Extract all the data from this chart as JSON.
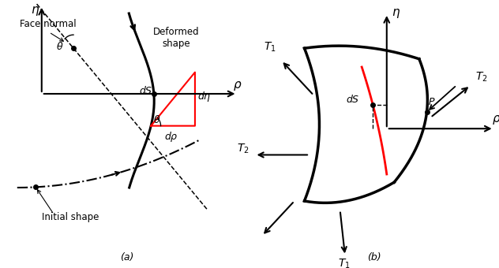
{
  "fig_width": 6.32,
  "fig_height": 3.4,
  "dpi": 100,
  "background": "#ffffff",
  "panel_a": {
    "label": "(a)",
    "eta_label": "η",
    "rho_label": "ρ",
    "face_normal_label": "Face normal",
    "deformed_label": "Deformed\nshape",
    "initial_label": "Initial shape",
    "theta_label": "θ",
    "dS_label": "dS",
    "deta_label": "dη",
    "drho_label": "dρ"
  },
  "panel_b": {
    "label": "(b)",
    "eta_label": "η",
    "rho_label": "ρ",
    "T1_label": "T_1",
    "T2_label": "T_2",
    "P_label": "P",
    "dS_label": "dS"
  }
}
